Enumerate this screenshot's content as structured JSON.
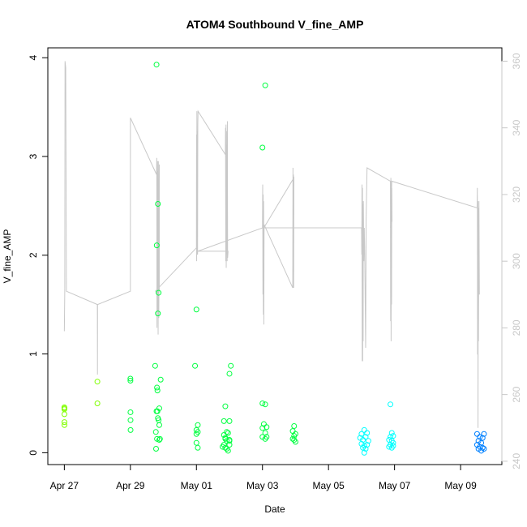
{
  "chart_data": {
    "type": "scatter",
    "title": "ATOM4 Southbound V_fine_AMP",
    "xlabel": "Date",
    "ylabel": "V_fine_AMP",
    "x_range": [
      "2020-04-26T12:00",
      "2020-05-10T06:00"
    ],
    "ylim": [
      -0.12,
      4.1
    ],
    "y2lim": [
      239,
      364
    ],
    "x_ticks": [
      {
        "date": "2020-04-27",
        "label": "Apr 27"
      },
      {
        "date": "2020-04-29",
        "label": "Apr 29"
      },
      {
        "date": "2020-05-01",
        "label": "May 01"
      },
      {
        "date": "2020-05-03",
        "label": "May 03"
      },
      {
        "date": "2020-05-05",
        "label": "May 05"
      },
      {
        "date": "2020-05-07",
        "label": "May 07"
      },
      {
        "date": "2020-05-09",
        "label": "May 09"
      }
    ],
    "y_ticks": [
      0,
      1,
      2,
      3,
      4
    ],
    "y2_ticks": [
      240,
      260,
      280,
      300,
      320,
      340,
      360
    ],
    "grid": false,
    "line_color": "#c8c8c8",
    "point_colors": {
      "early": "#80ff00",
      "mid": "#00ff40",
      "late": "#00ffff",
      "end": "#0080ff"
    },
    "series": [
      {
        "kind": "points",
        "axis": "left",
        "points": [
          [
            "2020-04-27T00:00",
            0.46
          ],
          [
            "2020-04-27T00:02",
            0.44
          ],
          [
            "2020-04-27T00:03",
            0.39
          ],
          [
            "2020-04-27T00:04",
            0.31
          ],
          [
            "2020-04-27T00:05",
            0.28
          ],
          [
            "2020-04-27T00:06",
            0.45
          ],
          [
            "2020-04-28T00:00",
            0.72
          ],
          [
            "2020-04-28T00:01",
            0.5
          ],
          [
            "2020-04-29T00:00",
            0.75
          ],
          [
            "2020-04-29T00:02",
            0.73
          ],
          [
            "2020-04-29T00:04",
            0.41
          ],
          [
            "2020-04-29T00:06",
            0.33
          ],
          [
            "2020-04-29T00:08",
            0.23
          ],
          [
            "2020-04-29T19:00",
            3.93
          ],
          [
            "2020-04-29T18:00",
            0.88
          ],
          [
            "2020-04-29T19:20",
            0.66
          ],
          [
            "2020-04-29T19:40",
            0.63
          ],
          [
            "2020-04-29T22:00",
            0.74
          ],
          [
            "2020-04-29T20:00",
            2.52
          ],
          [
            "2020-04-29T19:10",
            2.1
          ],
          [
            "2020-04-29T20:30",
            1.62
          ],
          [
            "2020-04-29T20:00",
            1.41
          ],
          [
            "2020-04-29T19:00",
            0.42
          ],
          [
            "2020-04-29T19:40",
            0.42
          ],
          [
            "2020-04-29T21:00",
            0.45
          ],
          [
            "2020-04-29T20:00",
            0.35
          ],
          [
            "2020-04-29T20:30",
            0.33
          ],
          [
            "2020-04-29T21:00",
            0.28
          ],
          [
            "2020-04-29T18:30",
            0.21
          ],
          [
            "2020-04-29T19:20",
            0.14
          ],
          [
            "2020-04-29T21:00",
            0.13
          ],
          [
            "2020-04-29T21:30",
            0.14
          ],
          [
            "2020-04-29T18:40",
            0.04
          ],
          [
            "2020-05-01T00:00",
            1.45
          ],
          [
            "2020-04-30T23:00",
            0.88
          ],
          [
            "2020-05-01T01:00",
            0.28
          ],
          [
            "2020-05-01T00:00",
            0.23
          ],
          [
            "2020-05-01T01:00",
            0.21
          ],
          [
            "2020-05-01T00:00",
            0.19
          ],
          [
            "2020-05-01T00:00",
            0.1
          ],
          [
            "2020-05-01T01:00",
            0.05
          ],
          [
            "2020-05-01T21:00",
            0.47
          ],
          [
            "2020-05-02T01:00",
            0.88
          ],
          [
            "2020-05-02T00:00",
            0.8
          ],
          [
            "2020-05-01T20:00",
            0.32
          ],
          [
            "2020-05-01T22:00",
            0.21
          ],
          [
            "2020-05-02T00:00",
            0.32
          ],
          [
            "2020-05-01T20:00",
            0.18
          ],
          [
            "2020-05-01T21:00",
            0.15
          ],
          [
            "2020-05-01T23:00",
            0.2
          ],
          [
            "2020-05-01T21:00",
            0.14
          ],
          [
            "2020-05-01T22:00",
            0.12
          ],
          [
            "2020-05-02T00:00",
            0.12
          ],
          [
            "2020-05-01T20:00",
            0.08
          ],
          [
            "2020-05-01T21:00",
            0.05
          ],
          [
            "2020-05-02T00:00",
            0.08
          ],
          [
            "2020-05-01T22:00",
            0.04
          ],
          [
            "2020-05-01T23:00",
            0.02
          ],
          [
            "2020-05-02T00:00",
            0.13
          ],
          [
            "2020-05-01T19:00",
            0.06
          ],
          [
            "2020-05-03T02:00",
            3.72
          ],
          [
            "2020-05-03T00:00",
            3.09
          ],
          [
            "2020-05-03T00:00",
            0.5
          ],
          [
            "2020-05-03T02:00",
            0.49
          ],
          [
            "2020-05-03T01:00",
            0.29
          ],
          [
            "2020-05-03T03:00",
            0.26
          ],
          [
            "2020-05-03T00:00",
            0.25
          ],
          [
            "2020-05-03T02:00",
            0.2
          ],
          [
            "2020-05-03T00:00",
            0.16
          ],
          [
            "2020-05-03T02:00",
            0.14
          ],
          [
            "2020-05-03T03:00",
            0.16
          ],
          [
            "2020-05-03T23:00",
            0.27
          ],
          [
            "2020-05-03T22:00",
            0.22
          ],
          [
            "2020-05-04T00:00",
            0.19
          ],
          [
            "2020-05-03T23:00",
            0.17
          ],
          [
            "2020-05-03T22:00",
            0.14
          ],
          [
            "2020-05-04T00:00",
            0.11
          ],
          [
            "2020-05-03T23:00",
            0.13
          ],
          [
            "2020-05-06T02:00",
            0.23
          ],
          [
            "2020-05-06T00:00",
            0.19
          ],
          [
            "2020-05-06T04:00",
            0.2
          ],
          [
            "2020-05-06T03:00",
            0.16
          ],
          [
            "2020-05-05T23:00",
            0.15
          ],
          [
            "2020-05-06T01:00",
            0.13
          ],
          [
            "2020-05-06T05:00",
            0.12
          ],
          [
            "2020-05-06T00:00",
            0.09
          ],
          [
            "2020-05-06T02:00",
            0.07
          ],
          [
            "2020-05-06T04:00",
            0.08
          ],
          [
            "2020-05-06T01:00",
            0.05
          ],
          [
            "2020-05-06T03:00",
            0.04
          ],
          [
            "2020-05-06T02:00",
            0.0
          ],
          [
            "2020-05-06T21:00",
            0.49
          ],
          [
            "2020-05-06T22:00",
            0.2
          ],
          [
            "2020-05-06T21:00",
            0.16
          ],
          [
            "2020-05-06T23:00",
            0.17
          ],
          [
            "2020-05-06T20:00",
            0.13
          ],
          [
            "2020-05-06T22:00",
            0.12
          ],
          [
            "2020-05-06T23:00",
            0.1
          ],
          [
            "2020-05-06T21:00",
            0.08
          ],
          [
            "2020-05-06T20:00",
            0.06
          ],
          [
            "2020-05-06T22:00",
            0.05
          ],
          [
            "2020-05-06T23:00",
            0.07
          ],
          [
            "2020-05-09T12:00",
            0.19
          ],
          [
            "2020-05-09T17:00",
            0.19
          ],
          [
            "2020-05-09T14:00",
            0.16
          ],
          [
            "2020-05-09T16:00",
            0.15
          ],
          [
            "2020-05-09T13:00",
            0.12
          ],
          [
            "2020-05-09T15:00",
            0.1
          ],
          [
            "2020-05-09T12:00",
            0.08
          ],
          [
            "2020-05-09T14:00",
            0.06
          ],
          [
            "2020-05-09T16:00",
            0.05
          ],
          [
            "2020-05-09T13:00",
            0.04
          ],
          [
            "2020-05-09T17:00",
            0.04
          ],
          [
            "2020-05-09T15:00",
            0.02
          ]
        ]
      },
      {
        "kind": "line",
        "axis": "right",
        "points": [
          [
            "2020-04-27T00:00",
            279
          ],
          [
            "2020-04-27T00:20",
            292
          ],
          [
            "2020-04-27T00:30",
            360
          ],
          [
            "2020-04-27T01:00",
            358
          ],
          [
            "2020-04-27T01:30",
            291
          ],
          [
            "2020-04-28T00:00",
            287
          ],
          [
            "2020-04-28T00:05",
            266
          ],
          [
            "2020-04-28T00:10",
            287
          ],
          [
            "2020-04-29T00:00",
            291
          ],
          [
            "2020-04-29T00:02",
            343
          ],
          [
            "2020-04-29T19:00",
            326
          ],
          [
            "2020-04-29T19:10",
            331
          ],
          [
            "2020-04-29T19:20",
            280
          ],
          [
            "2020-04-29T19:40",
            330
          ],
          [
            "2020-04-29T19:50",
            285
          ],
          [
            "2020-04-29T20:00",
            327
          ],
          [
            "2020-04-29T20:10",
            278
          ],
          [
            "2020-04-29T20:20",
            330
          ],
          [
            "2020-04-29T20:40",
            283
          ],
          [
            "2020-04-29T21:00",
            329
          ],
          [
            "2020-04-29T21:00",
            291
          ],
          [
            "2020-04-29T18:00",
            291
          ],
          [
            "2020-04-29T18:10",
            291
          ],
          [
            "2020-05-01T00:00",
            304
          ],
          [
            "2020-05-01T00:05",
            338
          ],
          [
            "2020-05-01T00:10",
            300
          ],
          [
            "2020-05-01T00:20",
            345
          ],
          [
            "2020-05-01T00:30",
            302
          ],
          [
            "2020-05-01T00:40",
            339
          ],
          [
            "2020-05-01T00:50",
            302
          ],
          [
            "2020-05-01T01:00",
            341
          ],
          [
            "2020-05-01T01:10",
            345
          ],
          [
            "2020-05-01T21:00",
            332
          ],
          [
            "2020-05-01T21:10",
            340
          ],
          [
            "2020-05-01T21:20",
            300
          ],
          [
            "2020-05-01T21:30",
            341
          ],
          [
            "2020-05-01T21:40",
            298
          ],
          [
            "2020-05-01T21:50",
            335
          ],
          [
            "2020-05-01T22:00",
            302
          ],
          [
            "2020-05-01T22:10",
            339
          ],
          [
            "2020-05-01T22:20",
            300
          ],
          [
            "2020-05-01T22:30",
            342
          ],
          [
            "2020-05-01T22:40",
            301
          ],
          [
            "2020-05-01T23:00",
            303
          ],
          [
            "2020-05-01T22:00",
            303
          ],
          [
            "2020-05-01T01:00",
            303
          ],
          [
            "2020-05-03T00:00",
            310
          ],
          [
            "2020-05-03T00:10",
            323
          ],
          [
            "2020-05-03T00:20",
            290
          ],
          [
            "2020-05-03T00:30",
            320
          ],
          [
            "2020-05-03T00:40",
            284
          ],
          [
            "2020-05-03T00:50",
            318
          ],
          [
            "2020-05-03T01:00",
            281
          ],
          [
            "2020-05-03T01:10",
            311
          ],
          [
            "2020-05-03T22:00",
            292
          ],
          [
            "2020-05-03T22:10",
            328
          ],
          [
            "2020-05-03T22:20",
            292
          ],
          [
            "2020-05-03T22:30",
            326
          ],
          [
            "2020-05-03T22:40",
            292
          ],
          [
            "2020-05-03T22:50",
            325
          ],
          [
            "2020-05-03T01:00",
            310
          ],
          [
            "2020-05-06T00:00",
            310
          ],
          [
            "2020-05-06T00:10",
            302
          ],
          [
            "2020-05-06T00:20",
            323
          ],
          [
            "2020-05-06T00:30",
            270
          ],
          [
            "2020-05-06T00:40",
            322
          ],
          [
            "2020-05-06T00:50",
            270
          ],
          [
            "2020-05-06T01:00",
            317
          ],
          [
            "2020-05-06T01:10",
            276
          ],
          [
            "2020-05-06T01:20",
            318
          ],
          [
            "2020-05-06T01:40",
            300
          ],
          [
            "2020-05-06T02:00",
            310
          ],
          [
            "2020-05-06T02:20",
            302
          ],
          [
            "2020-05-06T03:00",
            274
          ],
          [
            "2020-05-06T03:20",
            312
          ],
          [
            "2020-05-06T04:00",
            328
          ],
          [
            "2020-05-06T21:00",
            324
          ],
          [
            "2020-05-06T21:10",
            282
          ],
          [
            "2020-05-06T21:20",
            325
          ],
          [
            "2020-05-06T21:30",
            276
          ],
          [
            "2020-05-06T21:40",
            323
          ],
          [
            "2020-05-06T21:50",
            287
          ],
          [
            "2020-05-06T22:00",
            322
          ],
          [
            "2020-05-06T22:10",
            312
          ],
          [
            "2020-05-06T21:00",
            310
          ],
          [
            "2020-05-06T22:00",
            324
          ],
          [
            "2020-05-09T12:00",
            316
          ],
          [
            "2020-05-09T12:10",
            322
          ],
          [
            "2020-05-09T12:20",
            272
          ],
          [
            "2020-05-09T12:30",
            318
          ],
          [
            "2020-05-09T12:40",
            250
          ],
          [
            "2020-05-09T12:50",
            316
          ],
          [
            "2020-05-09T13:00",
            276
          ],
          [
            "2020-05-09T13:20",
            318
          ],
          [
            "2020-05-09T13:40",
            290
          ]
        ]
      }
    ]
  }
}
